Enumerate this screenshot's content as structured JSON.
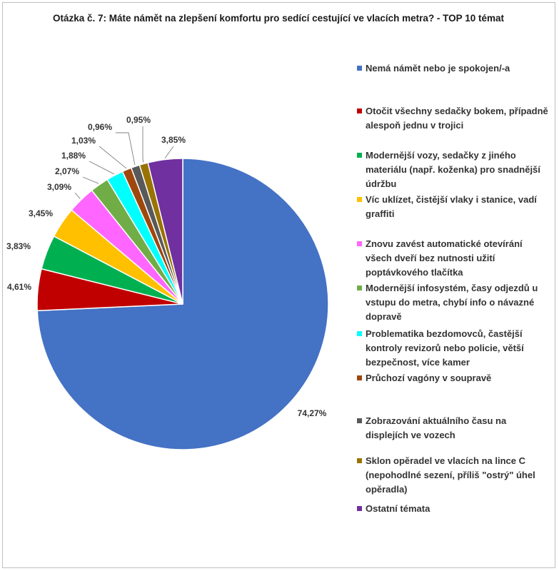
{
  "chart_data": {
    "type": "pie",
    "title": "Otázka č. 7: Máte námět na zlepšení komfortu pro sedící cestující ve vlacích metra? - TOP 10 témat",
    "legend_placement": "right",
    "slices": [
      {
        "label": "Nemá námět nebo je spokojen/-a",
        "value": 74.27,
        "value_label": "74,27%",
        "color": "#4472C4"
      },
      {
        "label": "Otočit všechny sedačky bokem, případně alespoň jednu v trojici",
        "value": 4.61,
        "value_label": "4,61%",
        "color": "#C00000"
      },
      {
        "label": "Modernější vozy, sedačky z jiného materiálu (např. koženka) pro snadnější údržbu",
        "value": 3.83,
        "value_label": "3,83%",
        "color": "#00B050"
      },
      {
        "label": "Víc uklízet, čistější vlaky i stanice, vadí graffiti",
        "value": 3.45,
        "value_label": "3,45%",
        "color": "#FFC000"
      },
      {
        "label": "Znovu zavést automatické otevírání všech dveří bez nutnosti užití poptávkového tlačítka",
        "value": 3.09,
        "value_label": "3,09%",
        "color": "#FF66FF"
      },
      {
        "label": "Modernější infosystém, časy odjezdů u vstupu do metra, chybí info o návazné dopravě",
        "value": 2.07,
        "value_label": "2,07%",
        "color": "#70AD47"
      },
      {
        "label": "Problematika bezdomovců, častější kontroly revizorů nebo policie, větší bezpečnost, více kamer",
        "value": 1.88,
        "value_label": "1,88%",
        "color": "#00FFFF"
      },
      {
        "label": "Průchozí vagóny v soupravě",
        "value": 1.03,
        "value_label": "1,03%",
        "color": "#9E480E"
      },
      {
        "label": "Zobrazování aktuálního času na displejích ve vozech",
        "value": 0.96,
        "value_label": "0,96%",
        "color": "#595959"
      },
      {
        "label": "Sklon opěradel ve vlacích na lince C (nepohodlné sezení, příliš \"ostrý\" úhel opěradla)",
        "value": 0.95,
        "value_label": "0,95%",
        "color": "#997300"
      },
      {
        "label": "Ostatní témata",
        "value": 3.85,
        "value_label": "3,85%",
        "color": "#7030A0"
      }
    ]
  }
}
